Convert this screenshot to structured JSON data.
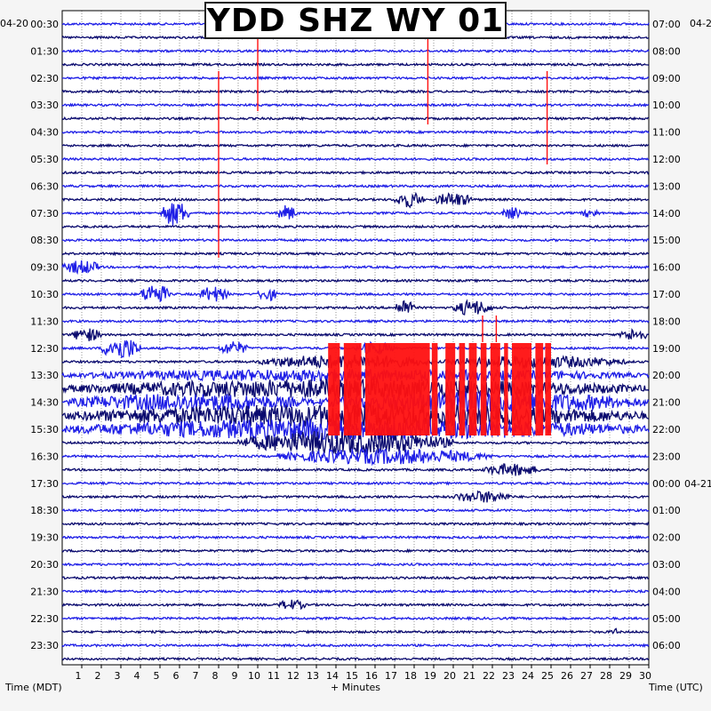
{
  "title": "YDD SHZ WY 01",
  "date_left": "04-20",
  "date_right": "04-2",
  "date_next": "04-21",
  "axis": {
    "x_title": "+ Minutes",
    "left_title": "Time (MDT)",
    "right_title": "Time (UTC)",
    "x_ticks": [
      "1",
      "2",
      "3",
      "4",
      "5",
      "6",
      "7",
      "8",
      "9",
      "10",
      "11",
      "12",
      "13",
      "14",
      "15",
      "16",
      "17",
      "18",
      "19",
      "20",
      "21",
      "22",
      "23",
      "24",
      "25",
      "26",
      "27",
      "28",
      "29",
      "30"
    ]
  },
  "colors": {
    "dark": "#0a0a6e",
    "blue": "#1e1ee6",
    "red": "#ff1010",
    "grid": "#000000"
  },
  "chart_data": {
    "type": "helicorder",
    "minutes_per_line": 30,
    "x_range": [
      0,
      30
    ],
    "left_labels": [
      "00:30",
      "01:30",
      "02:30",
      "03:30",
      "04:30",
      "05:30",
      "06:30",
      "07:30",
      "08:30",
      "09:30",
      "10:30",
      "11:30",
      "12:30",
      "13:30",
      "14:30",
      "15:30",
      "16:30",
      "17:30",
      "18:30",
      "19:30",
      "20:30",
      "21:30",
      "22:30",
      "23:30"
    ],
    "right_labels": [
      "07:00",
      "08:00",
      "09:00",
      "10:00",
      "11:00",
      "12:00",
      "13:00",
      "14:00",
      "15:00",
      "16:00",
      "17:00",
      "18:00",
      "19:00",
      "20:00",
      "21:00",
      "22:00",
      "23:00",
      "00:00",
      "01:00",
      "02:00",
      "03:00",
      "04:00",
      "05:00",
      "06:00"
    ]
  }
}
